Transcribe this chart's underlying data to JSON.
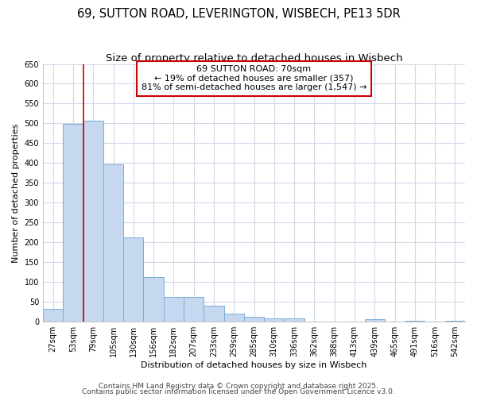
{
  "title": "69, SUTTON ROAD, LEVERINGTON, WISBECH, PE13 5DR",
  "subtitle": "Size of property relative to detached houses in Wisbech",
  "xlabel": "Distribution of detached houses by size in Wisbech",
  "ylabel": "Number of detached properties",
  "categories": [
    "27sqm",
    "53sqm",
    "79sqm",
    "105sqm",
    "130sqm",
    "156sqm",
    "182sqm",
    "207sqm",
    "233sqm",
    "259sqm",
    "285sqm",
    "310sqm",
    "336sqm",
    "362sqm",
    "388sqm",
    "413sqm",
    "439sqm",
    "465sqm",
    "491sqm",
    "516sqm",
    "542sqm"
  ],
  "values": [
    33,
    498,
    507,
    397,
    213,
    112,
    63,
    63,
    40,
    20,
    12,
    9,
    8,
    0,
    0,
    0,
    6,
    0,
    3,
    0,
    3
  ],
  "bar_color": "#c5d8f0",
  "bar_edge_color": "#7aaed6",
  "vline_color": "#cc0000",
  "vline_index": 2,
  "annotation_text": "69 SUTTON ROAD: 70sqm\n← 19% of detached houses are smaller (357)\n81% of semi-detached houses are larger (1,547) →",
  "ann_box_facecolor": "#ffffff",
  "ann_box_edgecolor": "#cc0000",
  "footer1": "Contains HM Land Registry data © Crown copyright and database right 2025.",
  "footer2": "Contains public sector information licensed under the Open Government Licence v3.0.",
  "ylim": [
    0,
    650
  ],
  "background_color": "#ffffff",
  "plot_bg_color": "#ffffff",
  "grid_color": "#d0d8e8",
  "title_fontsize": 10.5,
  "subtitle_fontsize": 9.5,
  "axis_label_fontsize": 8,
  "tick_fontsize": 7,
  "ann_fontsize": 8,
  "footer_fontsize": 6.5
}
